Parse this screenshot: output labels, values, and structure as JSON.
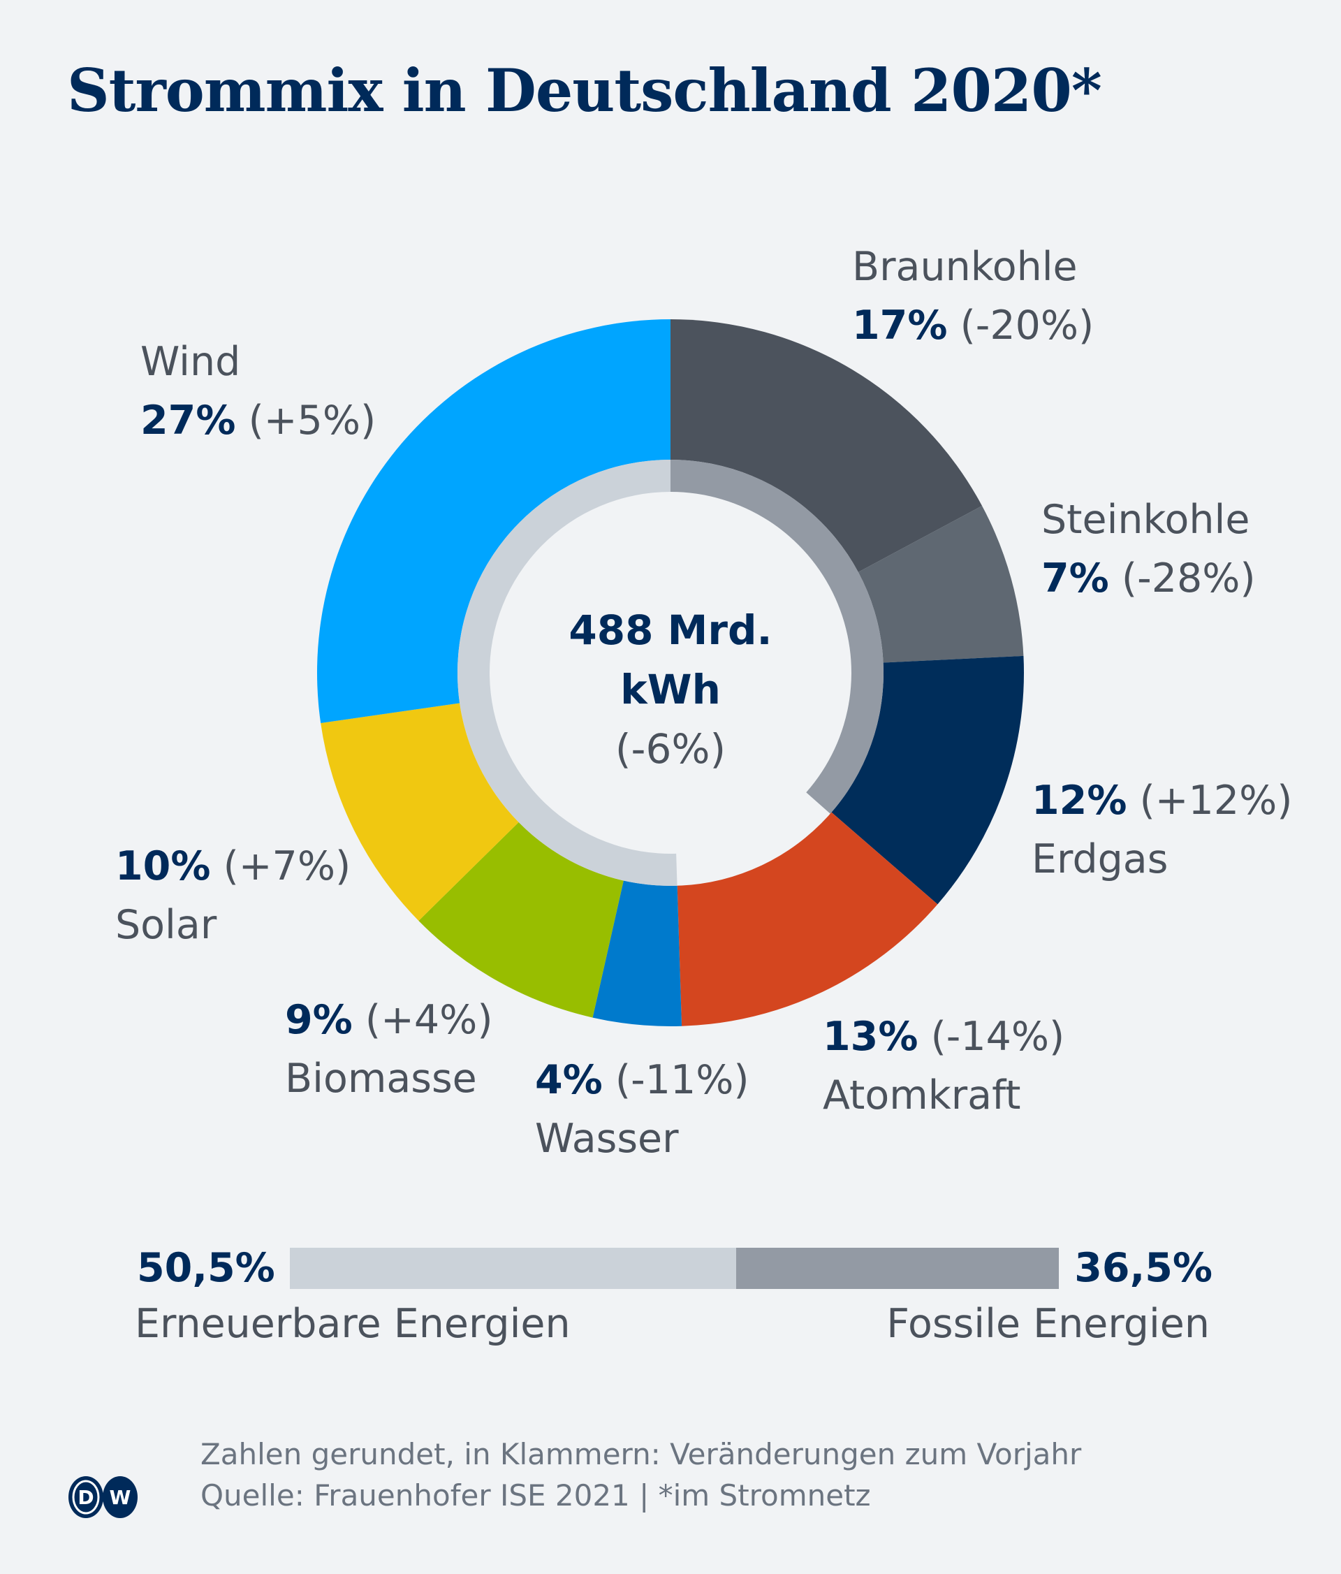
{
  "title": "Strommix in Deutschland 2020*",
  "chart_data": {
    "type": "pie",
    "variant": "donut",
    "center": {
      "total": "488 Mrd.",
      "unit": "kWh",
      "change": "(-6%)"
    },
    "slices": [
      {
        "name": "Braunkohle",
        "value": 17,
        "pct_label": "17%",
        "change": "(-20%)",
        "color": "#4c535d"
      },
      {
        "name": "Steinkohle",
        "value": 7,
        "pct_label": "7%",
        "change": "(-28%)",
        "color": "#5f6872"
      },
      {
        "name": "Erdgas",
        "value": 12,
        "pct_label": "12%",
        "change": "(+12%)",
        "color": "#002d5a"
      },
      {
        "name": "Atomkraft",
        "value": 13,
        "pct_label": "13%",
        "change": "(-14%)",
        "color": "#d4461f"
      },
      {
        "name": "Wasser",
        "value": 4,
        "pct_label": "4%",
        "change": "(-11%)",
        "color": "#007acc"
      },
      {
        "name": "Biomasse",
        "value": 9,
        "pct_label": "9%",
        "change": "(+4%)",
        "color": "#98be00"
      },
      {
        "name": "Solar",
        "value": 10,
        "pct_label": "10%",
        "change": "(+7%)",
        "color": "#f0c811"
      },
      {
        "name": "Wind",
        "value": 27,
        "pct_label": "27%",
        "change": "(+5%)",
        "color": "#00a5ff"
      }
    ],
    "inner_ring": [
      {
        "name": "Fossile Energien",
        "value": 36.5,
        "color": "#939aa4"
      },
      {
        "name": "Erneuerbare Energien",
        "value": 50.5,
        "color": "#cbd2d9"
      }
    ],
    "summary_bar": {
      "renewable": {
        "label": "Erneuerbare Energien",
        "value_label": "50,5%",
        "value": 50.5,
        "color": "#cbd2d9"
      },
      "fossil": {
        "label": "Fossile Energien",
        "value_label": "36,5%",
        "value": 36.5,
        "color": "#939aa4"
      }
    }
  },
  "footer": {
    "note": "Zahlen gerundet, in Klammern: Veränderungen zum Vorjahr",
    "source": "Quelle: Frauenhofer ISE 2021 | *im Stromnetz",
    "logo_text": "DW"
  }
}
